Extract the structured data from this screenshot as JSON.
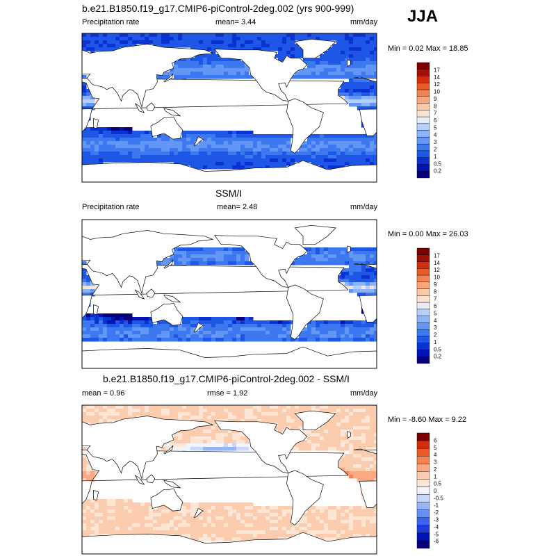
{
  "season": "JJA",
  "colors": {
    "seq": [
      "#08007a",
      "#0014b4",
      "#0a32d2",
      "#1e56e6",
      "#3c78f0",
      "#6496f5",
      "#8cb4fa",
      "#b4d0fc",
      "#e6eefa",
      "#fde2d2",
      "#fcc8aa",
      "#fca67e",
      "#f58252",
      "#e85a2a",
      "#d22d0f",
      "#a01005",
      "#7a0000"
    ],
    "div": [
      "#08007a",
      "#0014b4",
      "#1e3cdc",
      "#3c64f0",
      "#6490f5",
      "#96b4fa",
      "#c8d8fc",
      "#f0f4fc",
      "#fde6d6",
      "#fcccae",
      "#fca882",
      "#f58252",
      "#e85a2a",
      "#d22d0f",
      "#7a0000"
    ],
    "land": "#ffffff",
    "coast": "#000000"
  },
  "panels": [
    {
      "id": "model",
      "title": "b.e21.B1850.f19_g17.CMIP6-piControl-2deg.002 (yrs 900-999)",
      "left_label": "Precipitation rate",
      "mean_text": "mean=   3.44",
      "units": "mm/day",
      "minmax": "Min =  0.02 Max =  18.85",
      "colorbar": {
        "labels": [
          "17",
          "14",
          "12",
          "10",
          "9",
          "8",
          "7",
          "6",
          "5",
          "4",
          "3",
          "2",
          "1",
          "0.5",
          "0.2"
        ],
        "scale": "seq"
      },
      "field": {
        "itcz": 1.0,
        "warmpool": 1.0,
        "dryzones": 0.6,
        "stormtracks": 0.7,
        "noise": 0.15
      }
    },
    {
      "id": "obs",
      "title": "SSM/I",
      "left_label": "Precipitation rate",
      "mean_text": "mean=   2.48",
      "units": "mm/day",
      "minmax": "Min =  0.00 Max =  26.03",
      "colorbar": {
        "labels": [
          "17",
          "14",
          "12",
          "10",
          "9",
          "8",
          "7",
          "6",
          "5",
          "4",
          "3",
          "2",
          "1",
          "0.5",
          "0.2"
        ],
        "scale": "seq"
      },
      "field": {
        "itcz": 1.1,
        "warmpool": 0.9,
        "dryzones": 1.0,
        "stormtracks": 0.6,
        "noise": 0.25
      }
    },
    {
      "id": "diff",
      "title": "b.e21.B1850.f19_g17.CMIP6-piControl-2deg.002 - SSM/I",
      "left_label": "mean =   0.96",
      "mean_text": "rmse =   1.92",
      "units": "mm/day",
      "minmax": "Min =  -8.60 Max =   9.22",
      "colorbar": {
        "labels": [
          "6",
          "5",
          "4",
          "3",
          "2",
          "1",
          "0.5",
          "0",
          "-0.5",
          "-1",
          "-2",
          "-3",
          "-4",
          "-5",
          "-6"
        ],
        "scale": "div"
      },
      "field": {
        "itcz": 0.0,
        "warmpool": 0.0,
        "dryzones": 0.0,
        "stormtracks": 0.0,
        "noise": 0.2
      }
    }
  ]
}
